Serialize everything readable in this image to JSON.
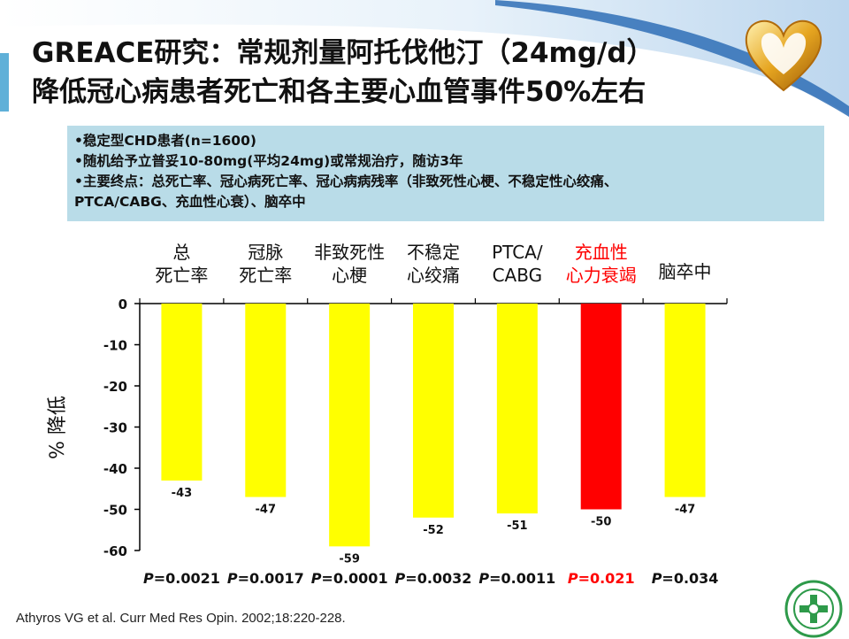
{
  "slide": {
    "title_line1": "GREACE研究：常规剂量阿托伐他汀（24mg/d）",
    "title_line2": "降低冠心病患者死亡和各主要心血管事件50%左右"
  },
  "info": {
    "bullets": [
      "•稳定型CHD患者(n=1600)",
      "•随机给予立普妥10-80mg(平均24mg)或常规治疗，随访3年",
      "•主要终点：总死亡率、冠心病死亡率、冠心病病残率（非致死性心梗、不稳定性心绞痛、",
      "PTCA/CABG、充血性心衰）、脑卒中"
    ]
  },
  "colors": {
    "bar": "#ffff00",
    "bar_highlight": "#ff0000",
    "info_bg": "#b9dce8"
  },
  "chart_data": {
    "type": "bar",
    "categories": [
      [
        "总",
        "死亡率"
      ],
      [
        "冠脉",
        "死亡率"
      ],
      [
        "非致死性",
        "心梗"
      ],
      [
        "不稳定",
        "心绞痛"
      ],
      [
        "PTCA/",
        "CABG"
      ],
      [
        "充血性",
        "心力衰竭"
      ],
      [
        "脑卒中"
      ]
    ],
    "values": [
      -43,
      -47,
      -59,
      -52,
      -51,
      -50,
      -47
    ],
    "value_labels": [
      "-43",
      "-47",
      "-59",
      "-52",
      "-51",
      "-50",
      "-47"
    ],
    "p_prefix": "P",
    "p_values": [
      "=0.0021",
      "=0.0017",
      "=0.0001",
      "=0.0032",
      "=0.0011",
      "=0.021",
      "=0.034"
    ],
    "highlight_index": 5,
    "ylabel": "% 降低",
    "ylim": [
      -60,
      0
    ],
    "yticks": [
      "0",
      "-10",
      "-20",
      "-30",
      "-40",
      "-50",
      "-60"
    ],
    "ytick_values": [
      0,
      -10,
      -20,
      -30,
      -40,
      -50,
      -60
    ],
    "grid": false,
    "legend": "none"
  },
  "footer": {
    "citation": "Athyros VG et al. Curr Med Res Opin. 2002;18:220-228."
  }
}
